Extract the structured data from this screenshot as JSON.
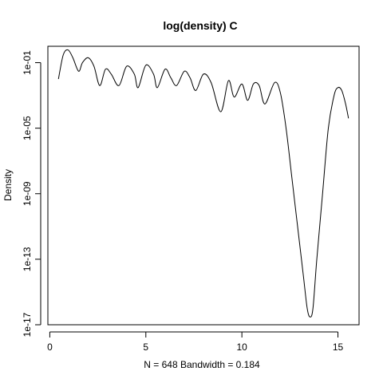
{
  "chart_data": {
    "type": "line",
    "title": "log(density) C",
    "xlabel": "N = 648   Bandwidth = 0.184",
    "ylabel": "Density",
    "y_scale": "log10",
    "xlim": [
      -0.1,
      16.1
    ],
    "ylim": [
      1e-17,
      1.0
    ],
    "x_ticks": [
      0,
      5,
      10,
      15
    ],
    "x_tick_labels": [
      "0",
      "5",
      "10",
      "15"
    ],
    "y_ticks": [
      1e-17,
      1e-13,
      1e-09,
      1e-05,
      0.1
    ],
    "y_tick_labels": [
      "1e-17",
      "1e-13",
      "1e-09",
      "1e-05",
      "1e-01"
    ],
    "grid": false,
    "legend": "none",
    "line_color": "#000000",
    "series": [
      {
        "x": [
          0.45,
          0.7,
          0.95,
          1.2,
          1.5,
          1.7,
          2.0,
          2.3,
          2.6,
          2.9,
          3.2,
          3.6,
          4.0,
          4.4,
          4.6,
          5.0,
          5.4,
          5.6,
          6.0,
          6.3,
          6.6,
          7.0,
          7.3,
          7.6,
          8.0,
          8.4,
          8.9,
          9.3,
          9.6,
          10.0,
          10.3,
          10.6,
          10.9,
          11.2,
          11.7,
          12.0,
          12.3,
          12.6,
          12.9,
          13.2,
          13.4,
          13.55,
          13.7,
          13.9,
          14.2,
          14.5,
          14.8,
          15.0,
          15.2,
          15.4,
          15.55
        ],
        "y": [
          0.01,
          0.3,
          0.6,
          0.2,
          0.03,
          0.1,
          0.2,
          0.06,
          0.004,
          0.04,
          0.02,
          0.004,
          0.06,
          0.02,
          0.003,
          0.07,
          0.02,
          0.003,
          0.04,
          0.012,
          0.004,
          0.03,
          0.012,
          0.002,
          0.02,
          0.006,
          0.0001,
          0.008,
          0.0008,
          0.005,
          0.0005,
          0.005,
          0.004,
          0.0003,
          0.006,
          0.0015,
          1e-05,
          1e-08,
          1e-11,
          1e-14,
          1e-16,
          3e-17,
          1e-16,
          1e-13,
          1e-09,
          1e-05,
          0.001,
          0.003,
          0.002,
          0.0003,
          4e-05
        ]
      }
    ]
  }
}
